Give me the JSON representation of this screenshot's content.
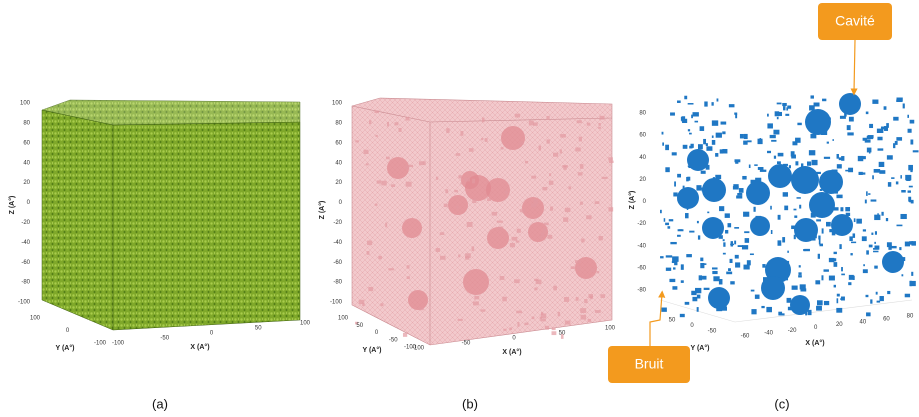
{
  "panels": [
    {
      "caption": "(a)",
      "z_label": "Z (A°)",
      "y_label": "Y (A°)",
      "x_label": "X (A°)",
      "z_ticks": [
        "100",
        "80",
        "60",
        "40",
        "20",
        "0",
        "-20",
        "-40",
        "-60",
        "-80",
        "-100"
      ],
      "y_ticks": [
        "100",
        "0",
        "-100"
      ],
      "x_ticks": [
        "-100",
        "-50",
        "0",
        "50",
        "100"
      ]
    },
    {
      "caption": "(b)",
      "z_label": "Z (A°)",
      "y_label": "Y (A°)",
      "x_label": "X (A°)",
      "z_ticks": [
        "100",
        "80",
        "60",
        "40",
        "20",
        "0",
        "-20",
        "-40",
        "-60",
        "-80",
        "-100"
      ],
      "y_ticks": [
        "100",
        "50",
        "0",
        "-50",
        "-100"
      ],
      "x_ticks": [
        "-100",
        "-50",
        "0",
        "50",
        "100"
      ]
    },
    {
      "caption": "(c)",
      "z_label": "Z (A°)",
      "y_label": "Y (A°)",
      "x_label": "X (A°)",
      "z_ticks": [
        "80",
        "60",
        "40",
        "20",
        "0",
        "-20",
        "-40",
        "-60",
        "-80"
      ],
      "y_ticks": [
        "50",
        "0",
        "-50"
      ],
      "x_ticks": [
        "-60",
        "-40",
        "-20",
        "0",
        "20",
        "40",
        "60",
        "80"
      ]
    }
  ],
  "callouts": {
    "cavity": "Cavité",
    "noise": "Bruit"
  }
}
